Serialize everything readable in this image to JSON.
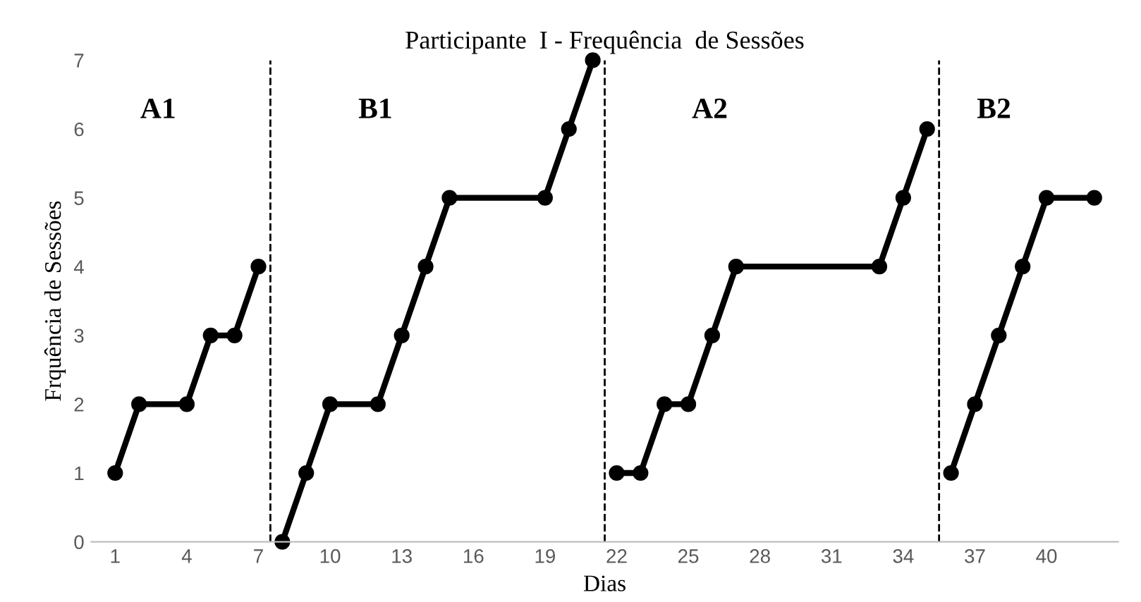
{
  "chart_data": {
    "type": "line",
    "title": "Participante  I - Frequência  de Sessões",
    "xlabel": "Dias",
    "ylabel": "Frquência de Sessões",
    "series": [
      {
        "color": "#000000",
        "x": [
          1,
          2,
          4,
          5,
          6,
          7
        ],
        "values": [
          1,
          2,
          2,
          3,
          3,
          4
        ]
      },
      {
        "color": "#000000",
        "x": [
          8,
          9,
          10,
          12,
          13,
          14,
          15,
          19,
          20,
          21
        ],
        "values": [
          0,
          1,
          2,
          2,
          3,
          4,
          5,
          5,
          6,
          7
        ]
      },
      {
        "color": "#000000",
        "x": [
          22,
          23,
          24,
          25,
          26,
          27,
          33,
          34,
          35
        ],
        "values": [
          1,
          1,
          2,
          2,
          3,
          4,
          4,
          5,
          6
        ]
      },
      {
        "color": "#000000",
        "x": [
          36,
          37,
          38,
          39,
          40,
          42
        ],
        "values": [
          1,
          2,
          3,
          4,
          5,
          5
        ]
      }
    ],
    "annotations": [
      "A1",
      "B1",
      "A2",
      "B2"
    ],
    "ref_lines": [
      {
        "axis": "x",
        "value": 7.5,
        "line_style": "dashed",
        "color": "#000000"
      },
      {
        "axis": "x",
        "value": 21.5,
        "line_style": "dashed",
        "color": "#000000"
      },
      {
        "axis": "x",
        "value": 35.5,
        "line_style": "dashed",
        "color": "#000000"
      }
    ],
    "xlim": [
      0,
      43
    ],
    "xticks": [
      1,
      4,
      7,
      10,
      13,
      16,
      19,
      22,
      25,
      28,
      31,
      34,
      37,
      40
    ],
    "ylim": [
      0,
      7
    ],
    "yticks": [
      0,
      1,
      2,
      3,
      4,
      5,
      6,
      7
    ],
    "grid": false,
    "marker": "circle",
    "line_style": "solid",
    "legend": false
  }
}
